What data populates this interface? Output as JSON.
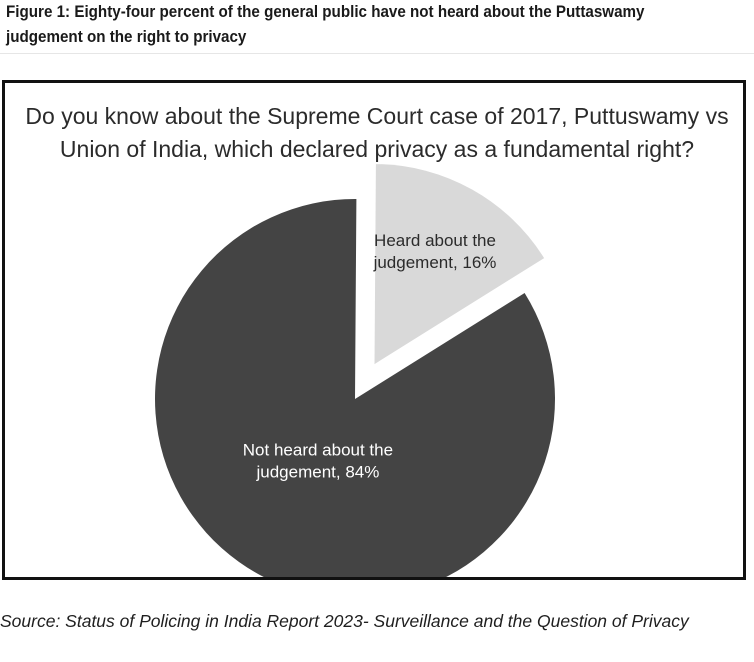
{
  "figure": {
    "title": "Figure 1: Eighty-four percent of the general public have not heard about the Puttaswamy judgement on the right to privacy",
    "source": "Source: Status of Policing in India Report 2023- Surveillance and the Question of Privacy"
  },
  "chart_data": {
    "type": "pie",
    "title": "Do you know about the Supreme Court case of 2017, Puttuswamy vs Union of India, which declared privacy as a fundamental right?",
    "slices": [
      {
        "label_lines": [
          "Not heard about the",
          "judgement, 84%"
        ],
        "value": 84,
        "color": "#444444",
        "label_color": "#ffffff",
        "exploded": false
      },
      {
        "label_lines": [
          "Heard about the",
          "judgement, 16%"
        ],
        "value": 16,
        "color": "#d9d9d9",
        "label_color": "#2b2b2b",
        "exploded": true
      }
    ],
    "legend": "none"
  }
}
